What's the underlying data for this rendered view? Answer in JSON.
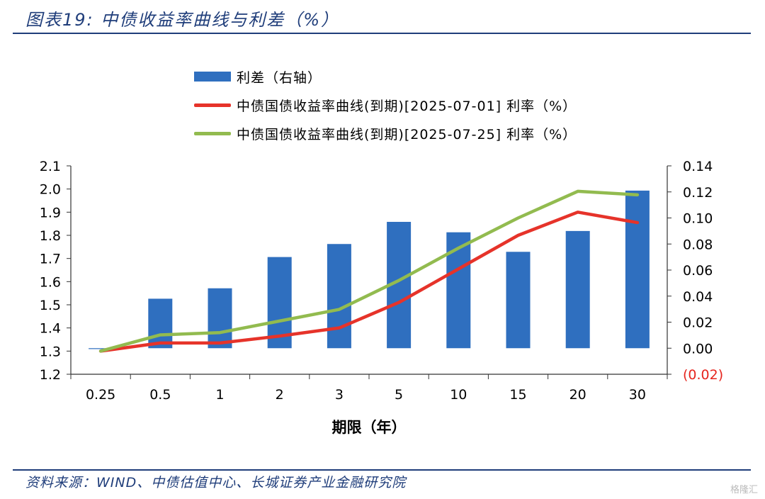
{
  "header": {
    "title": "图表19:  中债收益率曲线与利差（%）"
  },
  "footer": {
    "source": "资料来源：WIND、中债估值中心、长城证券产业金融研究院",
    "watermark": "格隆汇"
  },
  "colors": {
    "bar": "#2f6fbf",
    "line1": "#e6332a",
    "line2": "#92bb4f",
    "negative": "#e6251e",
    "rule": "#1f3d7a"
  },
  "chart_data": {
    "type": "bar",
    "categories": [
      "0.25",
      "0.5",
      "1",
      "2",
      "3",
      "5",
      "10",
      "15",
      "20",
      "30"
    ],
    "xlabel": "期限（年）",
    "ylim": [
      1.2,
      2.1
    ],
    "y_ticks": [
      "1.2",
      "1.3",
      "1.4",
      "1.5",
      "1.6",
      "1.7",
      "1.8",
      "1.9",
      "2.0",
      "2.1"
    ],
    "y2lim": [
      -0.02,
      0.14
    ],
    "y2_ticks": [
      "(0.02)",
      "0.00",
      "0.02",
      "0.04",
      "0.06",
      "0.08",
      "0.10",
      "0.12",
      "0.14"
    ],
    "series": [
      {
        "name": "利差（右轴）",
        "type": "bar",
        "axis": "right",
        "values": [
          0.0,
          0.038,
          0.046,
          0.07,
          0.08,
          0.097,
          0.089,
          0.074,
          0.09,
          0.121
        ]
      },
      {
        "name": "中债国债收益率曲线(到期)[2025-07-01] 利率（%）",
        "type": "line",
        "axis": "left",
        "values": [
          1.3,
          1.335,
          1.335,
          1.365,
          1.4,
          1.51,
          1.655,
          1.8,
          1.9,
          1.855
        ]
      },
      {
        "name": "中债国债收益率曲线(到期)[2025-07-25] 利率（%）",
        "type": "line",
        "axis": "left",
        "values": [
          1.3,
          1.37,
          1.38,
          1.43,
          1.48,
          1.605,
          1.745,
          1.875,
          1.99,
          1.975
        ]
      }
    ],
    "legend_position": "top-center"
  }
}
